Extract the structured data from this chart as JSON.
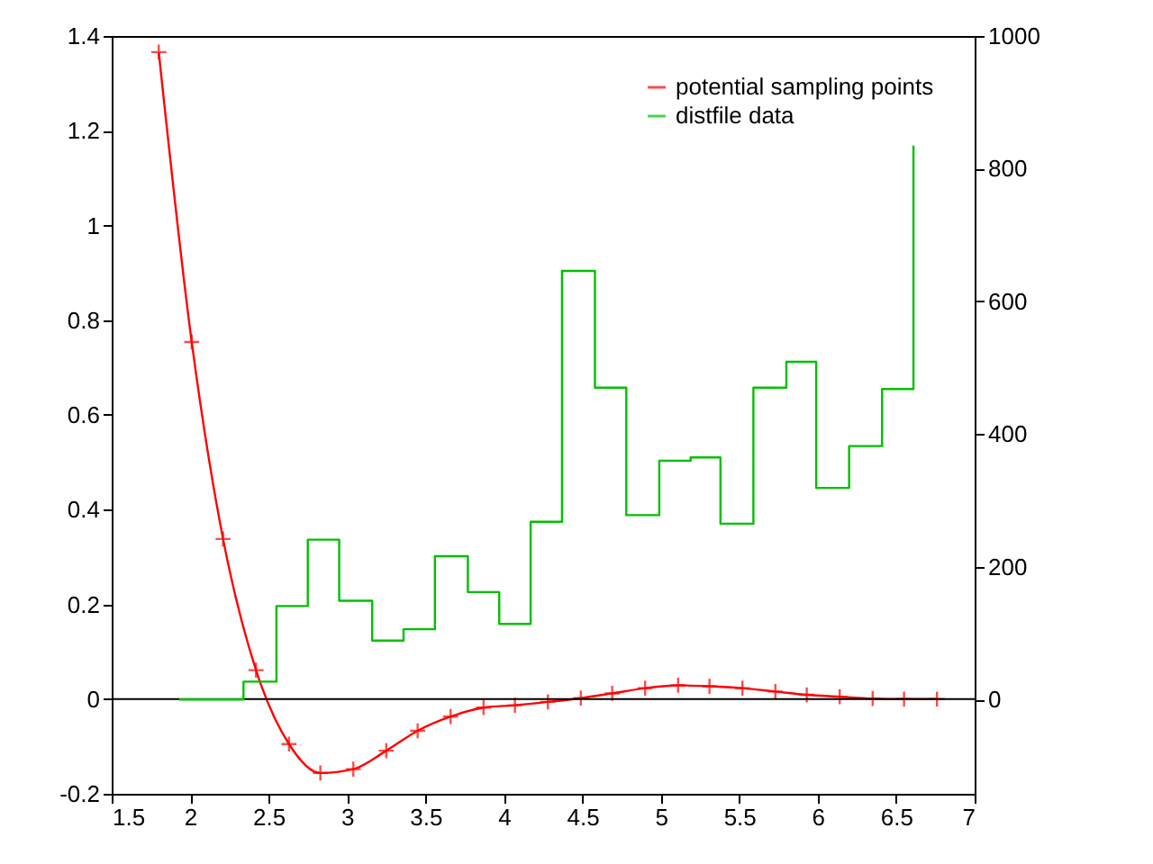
{
  "chart_data": {
    "type": "line",
    "legend": "top right",
    "grid": false,
    "xlim": [
      1.5,
      7
    ],
    "xticks": [
      1.5,
      2,
      2.5,
      3,
      3.5,
      4,
      4.5,
      5,
      5.5,
      6,
      6.5,
      7
    ],
    "ylim": [
      -0.2,
      1.4
    ],
    "yticks": [
      -0.2,
      0,
      0.2,
      0.4,
      0.6,
      0.8,
      1,
      1.2,
      1.4
    ],
    "y2lim": [
      -142,
      1000
    ],
    "y2ticks": [
      0,
      200,
      400,
      600,
      800,
      1000
    ],
    "ref_lines": [
      {
        "axis": "y",
        "value": 0,
        "color": "#000000"
      }
    ],
    "series": [
      {
        "name": "potential sampling points",
        "color": "#ff0000",
        "marker": "cross",
        "x": [
          1.8,
          2.01,
          2.21,
          2.42,
          2.63,
          2.83,
          3.04,
          3.25,
          3.45,
          3.66,
          3.87,
          4.07,
          4.28,
          4.49,
          4.69,
          4.9,
          5.11,
          5.31,
          5.52,
          5.73,
          5.93,
          6.14,
          6.35,
          6.55,
          6.76
        ],
        "values": [
          1.366,
          0.754,
          0.338,
          0.061,
          -0.095,
          -0.156,
          -0.148,
          -0.109,
          -0.067,
          -0.037,
          -0.018,
          -0.013,
          -0.006,
          0.002,
          0.012,
          0.023,
          0.029,
          0.027,
          0.023,
          0.016,
          0.009,
          0.005,
          0.001,
          0,
          0
        ]
      },
      {
        "name": "distfile data",
        "color": "#00c000",
        "type": "step",
        "axis": "y2",
        "marker": "none",
        "x": [
          1.93,
          2.13,
          2.34,
          2.55,
          2.75,
          2.95,
          3.16,
          3.36,
          3.56,
          3.77,
          3.97,
          4.17,
          4.37,
          4.58,
          4.78,
          4.99,
          5.19,
          5.38,
          5.59,
          5.8,
          5.99,
          6.2,
          6.41,
          6.61
        ],
        "values": [
          0,
          0,
          27,
          141,
          241,
          149,
          89,
          106,
          216,
          162,
          114,
          268,
          646,
          470,
          278,
          360,
          365,
          265,
          470,
          509,
          319,
          382,
          468,
          835
        ]
      }
    ]
  }
}
